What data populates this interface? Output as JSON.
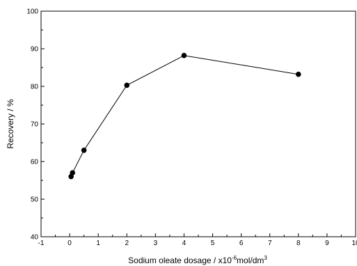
{
  "chart_data": {
    "type": "line",
    "title": "",
    "xlabel": {
      "prefix": "Sodium oleate dosage / x10",
      "exp1": "-6",
      "middle": "mol/dm",
      "exp2": "3"
    },
    "ylabel": "Recovery / %",
    "xlim": [
      -1,
      10
    ],
    "ylim": [
      40,
      100
    ],
    "xticks": [
      "-1",
      "0",
      "1",
      "2",
      "3",
      "4",
      "5",
      "6",
      "7",
      "8",
      "9",
      "10"
    ],
    "yticks": [
      "40",
      "50",
      "60",
      "70",
      "80",
      "90",
      "100"
    ],
    "grid": false,
    "legend": "none",
    "series": [
      {
        "x": [
          0.05,
          0.1,
          0.5,
          2,
          4,
          8
        ],
        "y": [
          56,
          57,
          63,
          80.3,
          88.2,
          83.2
        ],
        "color": "#000000",
        "marker": "filled-circle"
      }
    ]
  }
}
